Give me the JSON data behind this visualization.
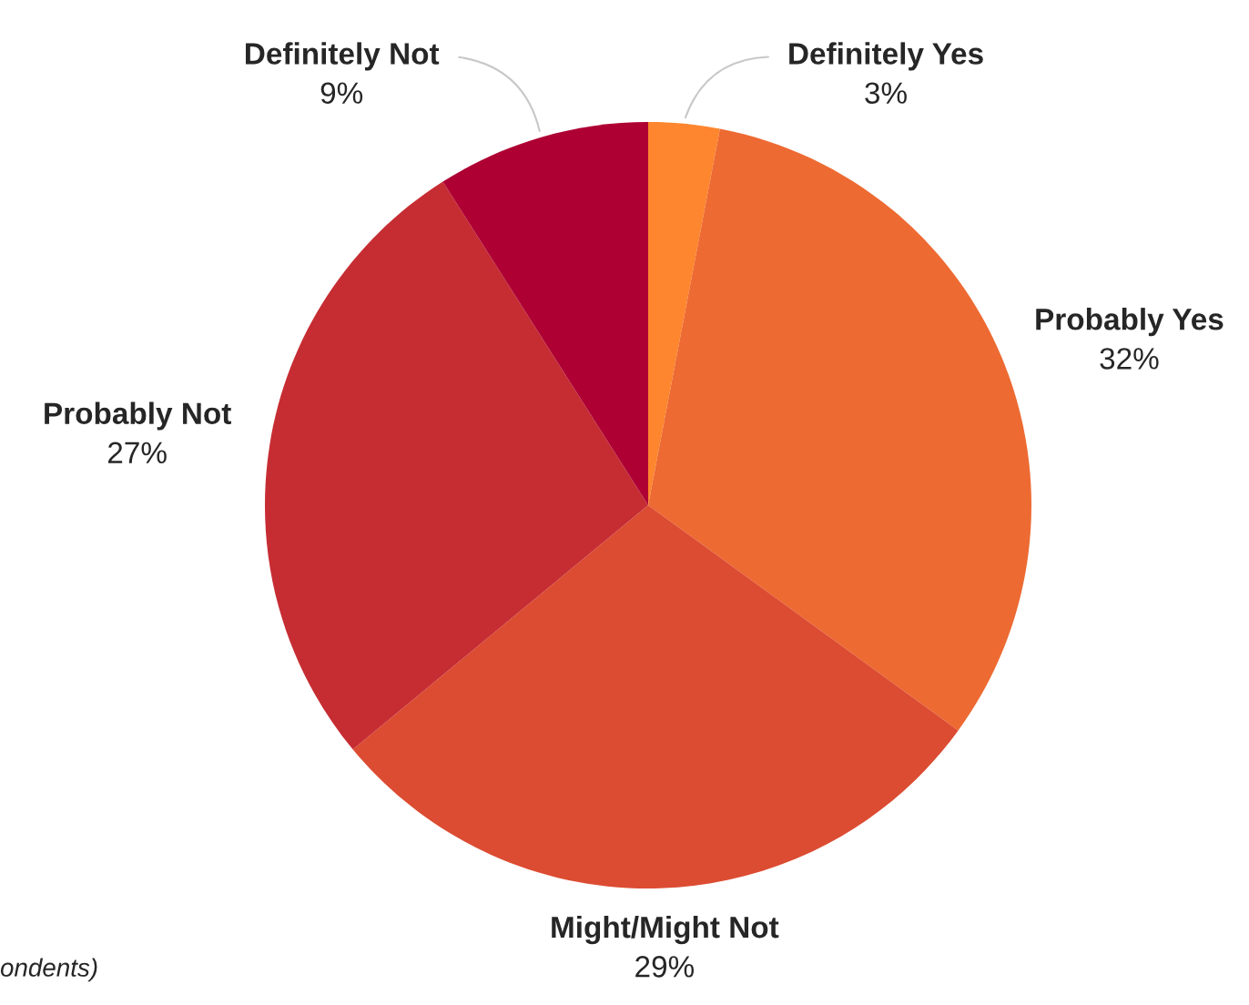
{
  "chart_data": {
    "type": "pie",
    "categories": [
      "Definitely Yes",
      "Probably Yes",
      "Might/Might Not",
      "Probably Not",
      "Definitely Not"
    ],
    "values": [
      3,
      32,
      29,
      27,
      9
    ],
    "colors": [
      "#fd862e",
      "#ed6a32",
      "#dc4c32",
      "#c62d33",
      "#ae0033"
    ],
    "value_labels": [
      "3%",
      "32%",
      "29%",
      "27%",
      "9%"
    ],
    "annotations": [
      "ondents)"
    ]
  }
}
